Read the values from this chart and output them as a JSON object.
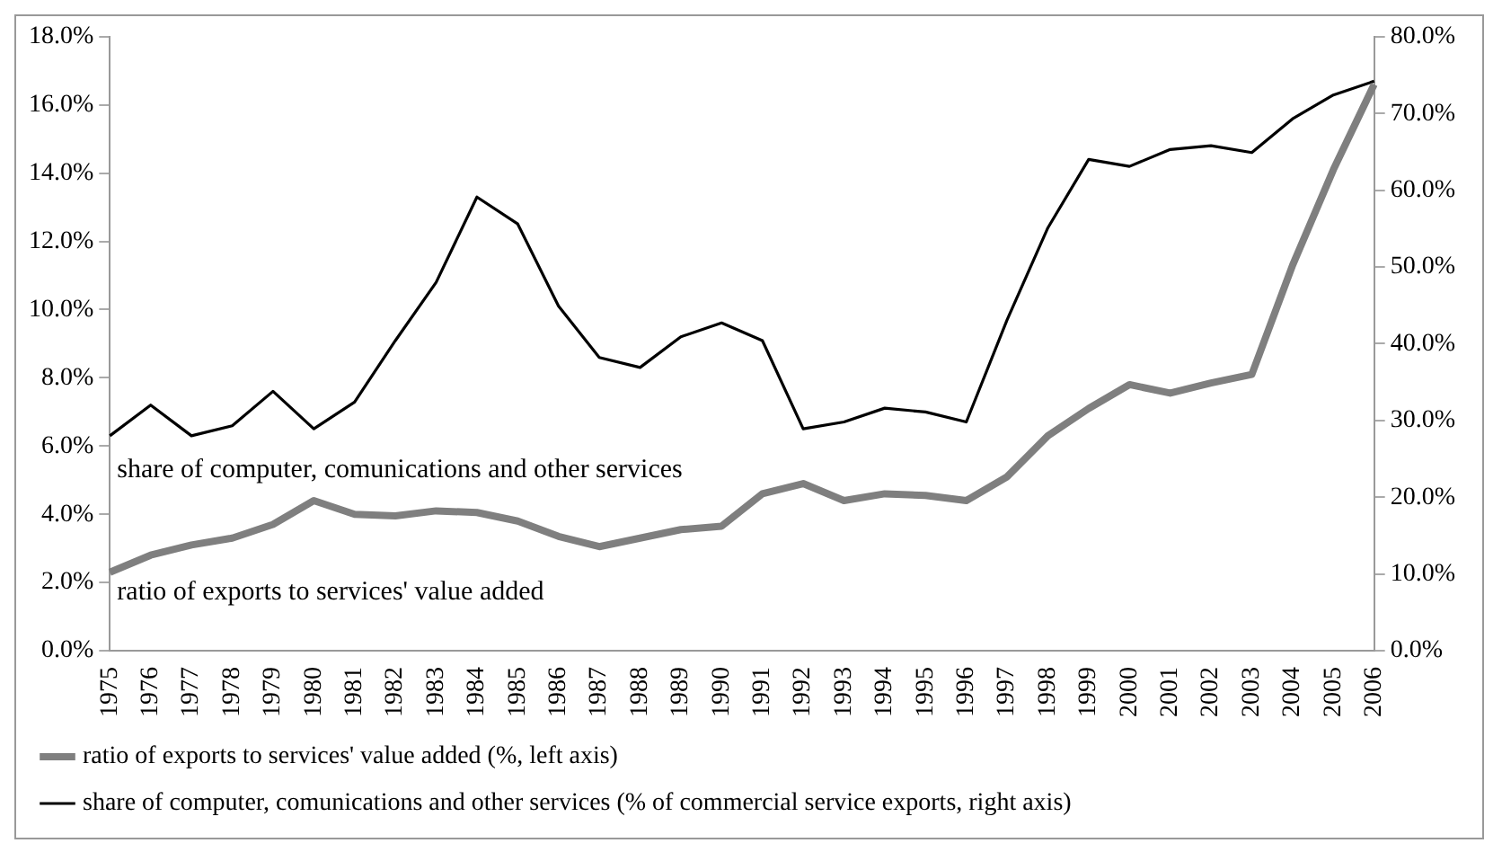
{
  "chart_data": {
    "type": "line",
    "categories": [
      "1975",
      "1976",
      "1977",
      "1978",
      "1979",
      "1980",
      "1981",
      "1982",
      "1983",
      "1984",
      "1985",
      "1986",
      "1987",
      "1988",
      "1989",
      "1990",
      "1991",
      "1992",
      "1993",
      "1994",
      "1995",
      "1996",
      "1997",
      "1998",
      "1999",
      "2000",
      "2001",
      "2002",
      "2003",
      "2004",
      "2005",
      "2006"
    ],
    "series": [
      {
        "name": "ratio of exports to services' value added (%, left axis)",
        "color": "#7f7f7f",
        "values": [
          2.3,
          2.8,
          3.1,
          3.3,
          3.7,
          4.4,
          4.0,
          3.95,
          4.1,
          4.05,
          3.8,
          3.35,
          3.05,
          3.3,
          3.55,
          3.65,
          4.6,
          4.9,
          4.4,
          4.6,
          4.55,
          4.4,
          5.1,
          6.3,
          7.1,
          7.8,
          7.55,
          7.85,
          8.1,
          11.3,
          14.1,
          16.6
        ]
      },
      {
        "name": "share of computer, comunications and other services (% of commercial service exports, right axis)",
        "color": "#000000",
        "axis": "y2",
        "values": [
          28,
          32,
          28,
          29.3,
          33.8,
          28.9,
          32.4,
          40.4,
          48,
          59.1,
          55.6,
          44.9,
          38.2,
          36.9,
          40.9,
          42.7,
          40.4,
          28.9,
          29.8,
          31.6,
          31.1,
          29.8,
          43.1,
          55.1,
          64,
          63.1,
          65.3,
          65.8,
          64.9,
          69.3,
          72.4,
          74.2
        ]
      }
    ],
    "ylim": [
      0,
      18
    ],
    "yticks": [
      {
        "value": 0,
        "label": "0.0%"
      },
      {
        "value": 2,
        "label": "2.0%"
      },
      {
        "value": 4,
        "label": "4.0%"
      },
      {
        "value": 6,
        "label": "6.0%"
      },
      {
        "value": 8,
        "label": "8.0%"
      },
      {
        "value": 10,
        "label": "10.0%"
      },
      {
        "value": 12,
        "label": "12.0%"
      },
      {
        "value": 14,
        "label": "14.0%"
      },
      {
        "value": 16,
        "label": "16.0%"
      },
      {
        "value": 18,
        "label": "18.0%"
      }
    ],
    "y2lim": [
      0,
      80
    ],
    "y2ticks": [
      {
        "value": 0,
        "label": "0.0%"
      },
      {
        "value": 10,
        "label": "10.0%"
      },
      {
        "value": 20,
        "label": "20.0%"
      },
      {
        "value": 30,
        "label": "30.0%"
      },
      {
        "value": 40,
        "label": "40.0%"
      },
      {
        "value": 50,
        "label": "50.0%"
      },
      {
        "value": 60,
        "label": "60.0%"
      },
      {
        "value": 70,
        "label": "70.0%"
      },
      {
        "value": 80,
        "label": "80.0%"
      }
    ],
    "annotations": [
      "share of computer, comunications and other services",
      "ratio of exports to services' value added"
    ],
    "grid": false,
    "legend": "bottom",
    "marker": "none",
    "line_style": "solid"
  }
}
